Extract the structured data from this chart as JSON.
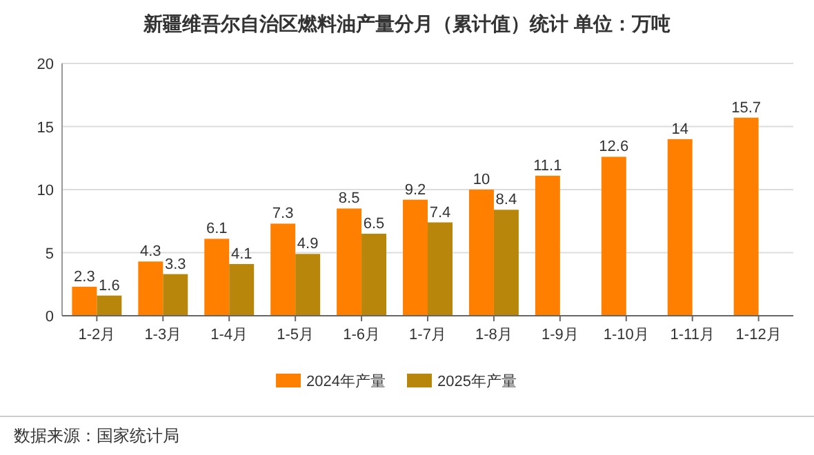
{
  "chart_data": {
    "type": "bar",
    "title": "新疆维吾尔自治区燃料油产量分月（累计值）统计  单位：万吨",
    "categories": [
      "1-2月",
      "1-3月",
      "1-4月",
      "1-5月",
      "1-6月",
      "1-7月",
      "1-8月",
      "1-9月",
      "1-10月",
      "1-11月",
      "1-12月"
    ],
    "series": [
      {
        "name": "2024年产量",
        "color": "#ff8000",
        "values": [
          2.3,
          4.3,
          6.1,
          7.3,
          8.5,
          9.2,
          10,
          11.1,
          12.6,
          14,
          15.7
        ]
      },
      {
        "name": "2025年产量",
        "color": "#b8860b",
        "values": [
          1.6,
          3.3,
          4.1,
          4.9,
          6.5,
          7.4,
          8.4,
          null,
          null,
          null,
          null
        ]
      }
    ],
    "ylim": [
      0,
      20
    ],
    "yticks": [
      0,
      5,
      10,
      15,
      20
    ],
    "grid": "y",
    "legend": "bottom",
    "data_labels": true,
    "annotations": [
      "数据来源：国家统计局"
    ]
  }
}
